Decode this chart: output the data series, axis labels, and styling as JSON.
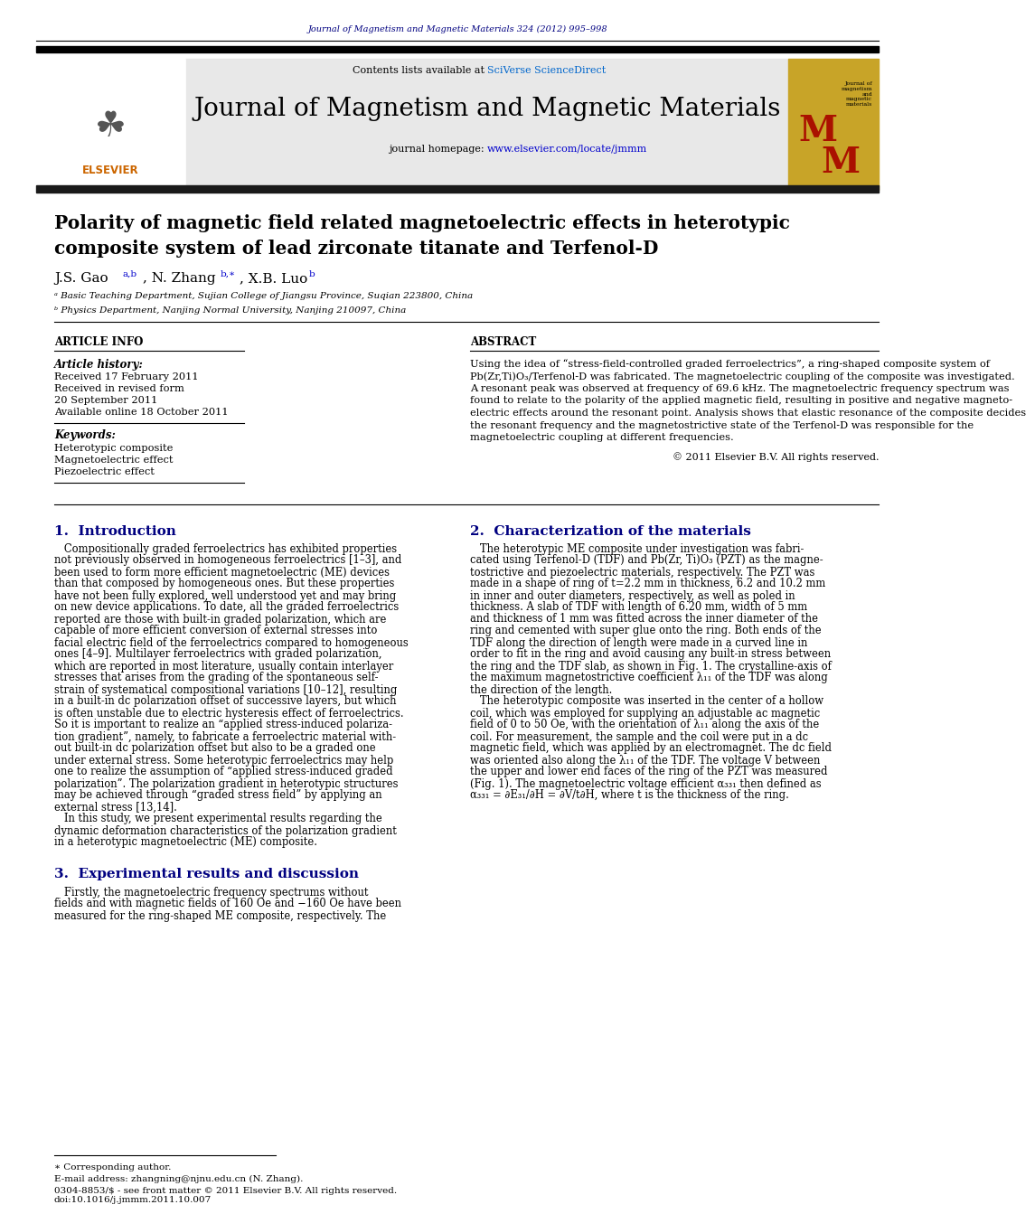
{
  "page_bg": "#ffffff",
  "top_journal_line": "Journal of Magnetism and Magnetic Materials 324 (2012) 995–998",
  "top_journal_color": "#000080",
  "header_bg": "#e8e8e8",
  "header_contents": "Contents lists available at SciVerse ScienceDirect",
  "header_journal_name": "Journal of Magnetism and Magnetic Materials",
  "header_homepage": "journal homepage: www.elsevier.com/locate/jmmm",
  "header_homepage_color": "#0000cc",
  "sciverse_color": "#0066cc",
  "paper_title_line1": "Polarity of magnetic field related magnetoelectric effects in heterotypic",
  "paper_title_line2": "composite system of lead zirconate titanate and Terfenol-D",
  "affil_a": "ᵃ Basic Teaching Department, Sujian College of Jiangsu Province, Suqian 223800, China",
  "affil_b": "ᵇ Physics Department, Nanjing Normal University, Nanjing 210097, China",
  "article_info_title": "ARTICLE INFO",
  "article_history_label": "Article history:",
  "received": "Received 17 February 2011",
  "received_revised": "Received in revised form",
  "received_revised_date": "20 September 2011",
  "available": "Available online 18 October 2011",
  "keywords_label": "Keywords:",
  "keyword1": "Heterotypic composite",
  "keyword2": "Magnetoelectric effect",
  "keyword3": "Piezoelectric effect",
  "abstract_title": "ABSTRACT",
  "copyright": "© 2011 Elsevier B.V. All rights reserved.",
  "section1_title": "1.  Introduction",
  "section2_title": "2.  Characterization of the materials",
  "section3_title": "3.  Experimental results and discussion",
  "footnote_corresponding": "∗ Corresponding author.",
  "footnote_email": "E-mail address: zhangning@njnu.edu.cn (N. Zhang).",
  "footnote_issn": "0304-8853/$ - see front matter © 2011 Elsevier B.V. All rights reserved.",
  "footnote_doi": "doi:10.1016/j.jmmm.2011.10.007",
  "section_title_color": "#000080",
  "link_color": "#0000cc",
  "abstract_lines": [
    "Using the idea of “stress-field-controlled graded ferroelectrics”, a ring-shaped composite system of",
    "Pb(Zr,Ti)O₃/Terfenol-D was fabricated. The magnetoelectric coupling of the composite was investigated.",
    "A resonant peak was observed at frequency of 69.6 kHz. The magnetoelectric frequency spectrum was",
    "found to relate to the polarity of the applied magnetic field, resulting in positive and negative magneto-",
    "electric effects around the resonant point. Analysis shows that elastic resonance of the composite decides",
    "the resonant frequency and the magnetostrictive state of the Terfenol-D was responsible for the",
    "magnetoelectric coupling at different frequencies."
  ],
  "intro_lines": [
    "   Compositionally graded ferroelectrics has exhibited properties",
    "not previously observed in homogeneous ferroelectrics [1–3], and",
    "been used to form more efficient magnetoelectric (ME) devices",
    "than that composed by homogeneous ones. But these properties",
    "have not been fully explored, well understood yet and may bring",
    "on new device applications. To date, all the graded ferroelectrics",
    "reported are those with built-in graded polarization, which are",
    "capable of more efficient conversion of external stresses into",
    "facial electric field of the ferroelectrics compared to homogeneous",
    "ones [4–9]. Multilayer ferroelectrics with graded polarization,",
    "which are reported in most literature, usually contain interlayer",
    "stresses that arises from the grading of the spontaneous self-",
    "strain of systematical compositional variations [10–12], resulting",
    "in a built-in dc polarization offset of successive layers, but which",
    "is often unstable due to electric hysteresis effect of ferroelectrics.",
    "So it is important to realize an “applied stress-induced polariza-",
    "tion gradient”, namely, to fabricate a ferroelectric material with-",
    "out built-in dc polarization offset but also to be a graded one",
    "under external stress. Some heterotypic ferroelectrics may help",
    "one to realize the assumption of “applied stress-induced graded",
    "polarization”. The polarization gradient in heterotypic structures",
    "may be achieved through “graded stress field” by applying an",
    "external stress [13,14].",
    "   In this study, we present experimental results regarding the",
    "dynamic deformation characteristics of the polarization gradient",
    "in a heterotypic magnetoelectric (ME) composite."
  ],
  "sec2_lines": [
    "   The heterotypic ME composite under investigation was fabri-",
    "cated using Terfenol-D (TDF) and Pb(Zr, Ti)O₃ (PZT) as the magne-",
    "tostrictive and piezoelectric materials, respectively. The PZT was",
    "made in a shape of ring of t=2.2 mm in thickness, 6.2 and 10.2 mm",
    "in inner and outer diameters, respectively, as well as poled in",
    "thickness. A slab of TDF with length of 6.20 mm, width of 5 mm",
    "and thickness of 1 mm was fitted across the inner diameter of the",
    "ring and cemented with super glue onto the ring. Both ends of the",
    "TDF along the direction of length were made in a curved line in",
    "order to fit in the ring and avoid causing any built-in stress between",
    "the ring and the TDF slab, as shown in Fig. 1. The crystalline-axis of",
    "the maximum magnetostrictive coefficient λ₁₁ of the TDF was along",
    "the direction of the length.",
    "   The heterotypic composite was inserted in the center of a hollow",
    "coil, which was employed for supplying an adjustable ac magnetic",
    "field of 0 to 50 Oe, with the orientation of λ₁₁ along the axis of the",
    "coil. For measurement, the sample and the coil were put in a dc",
    "magnetic field, which was applied by an electromagnet. The dc field",
    "was oriented also along the λ₁₁ of the TDF. The voltage V between",
    "the upper and lower end faces of the ring of the PZT was measured",
    "(Fig. 1). The magnetoelectric voltage efficient α₃₃₁ then defined as",
    "α₃₃₁ = ∂E₃₁/∂H = ∂V/t∂H, where t is the thickness of the ring."
  ],
  "sec3_lines": [
    "   Firstly, the magnetoelectric frequency spectrums without",
    "fields and with magnetic fields of 160 Oe and −160 Oe have been",
    "measured for the ring-shaped ME composite, respectively. The"
  ]
}
